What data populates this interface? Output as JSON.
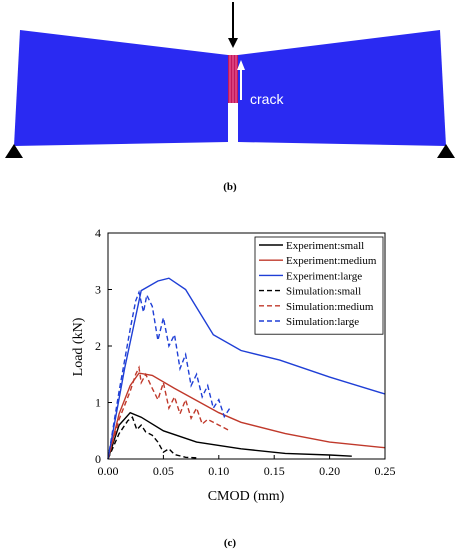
{
  "panel_b": {
    "label": "(b)",
    "crack_label": "crack",
    "beam_color": "#2a2af2",
    "crack_color": "#c2185b"
  },
  "panel_c": {
    "label": "(c)"
  },
  "chart_data": {
    "type": "line",
    "xlabel": "CMOD (mm)",
    "ylabel": "Load (kN)",
    "xlim": [
      0,
      0.25
    ],
    "ylim": [
      0,
      4
    ],
    "xticks": [
      "0.00",
      "0.05",
      "0.10",
      "0.15",
      "0.20",
      "0.25"
    ],
    "yticks": [
      "0",
      "1",
      "2",
      "3",
      "4"
    ],
    "grid": false,
    "legend_position": "top-right",
    "series": [
      {
        "name": "Experiment:small",
        "color": "#000000",
        "dash": "solid",
        "points": [
          [
            0,
            0
          ],
          [
            0.01,
            0.6
          ],
          [
            0.02,
            0.82
          ],
          [
            0.03,
            0.74
          ],
          [
            0.05,
            0.5
          ],
          [
            0.08,
            0.3
          ],
          [
            0.12,
            0.18
          ],
          [
            0.16,
            0.1
          ],
          [
            0.2,
            0.07
          ],
          [
            0.22,
            0.05
          ]
        ]
      },
      {
        "name": "Experiment:medium",
        "color": "#c0392b",
        "dash": "solid",
        "points": [
          [
            0,
            0
          ],
          [
            0.01,
            0.8
          ],
          [
            0.02,
            1.3
          ],
          [
            0.028,
            1.52
          ],
          [
            0.04,
            1.48
          ],
          [
            0.06,
            1.25
          ],
          [
            0.1,
            0.82
          ],
          [
            0.12,
            0.65
          ],
          [
            0.16,
            0.45
          ],
          [
            0.2,
            0.3
          ],
          [
            0.25,
            0.2
          ]
        ]
      },
      {
        "name": "Experiment:large",
        "color": "#1f3fd6",
        "dash": "solid",
        "points": [
          [
            0,
            0
          ],
          [
            0.015,
            1.6
          ],
          [
            0.03,
            2.98
          ],
          [
            0.045,
            3.15
          ],
          [
            0.055,
            3.2
          ],
          [
            0.07,
            3.0
          ],
          [
            0.095,
            2.2
          ],
          [
            0.12,
            1.92
          ],
          [
            0.155,
            1.75
          ],
          [
            0.2,
            1.45
          ],
          [
            0.25,
            1.15
          ]
        ]
      },
      {
        "name": "Simulation:small",
        "color": "#000000",
        "dash": "dashed",
        "points": [
          [
            0,
            0
          ],
          [
            0.01,
            0.45
          ],
          [
            0.018,
            0.68
          ],
          [
            0.022,
            0.74
          ],
          [
            0.026,
            0.52
          ],
          [
            0.03,
            0.6
          ],
          [
            0.034,
            0.48
          ],
          [
            0.04,
            0.42
          ],
          [
            0.045,
            0.3
          ],
          [
            0.05,
            0.12
          ],
          [
            0.055,
            0.18
          ],
          [
            0.06,
            0.08
          ],
          [
            0.07,
            0.03
          ],
          [
            0.08,
            0.02
          ]
        ]
      },
      {
        "name": "Simulation:medium",
        "color": "#c0392b",
        "dash": "dashed",
        "points": [
          [
            0,
            0
          ],
          [
            0.01,
            0.7
          ],
          [
            0.02,
            1.2
          ],
          [
            0.025,
            1.5
          ],
          [
            0.028,
            1.62
          ],
          [
            0.03,
            1.35
          ],
          [
            0.034,
            1.5
          ],
          [
            0.04,
            1.25
          ],
          [
            0.045,
            1.05
          ],
          [
            0.05,
            1.35
          ],
          [
            0.055,
            0.9
          ],
          [
            0.06,
            1.1
          ],
          [
            0.065,
            0.8
          ],
          [
            0.07,
            1.05
          ],
          [
            0.075,
            0.72
          ],
          [
            0.08,
            0.9
          ],
          [
            0.085,
            0.62
          ],
          [
            0.09,
            0.7
          ],
          [
            0.1,
            0.6
          ],
          [
            0.11,
            0.5
          ]
        ]
      },
      {
        "name": "Simulation:large",
        "color": "#1f3fd6",
        "dash": "dashed",
        "points": [
          [
            0,
            0
          ],
          [
            0.01,
            1.2
          ],
          [
            0.02,
            2.3
          ],
          [
            0.025,
            2.8
          ],
          [
            0.028,
            2.95
          ],
          [
            0.032,
            2.6
          ],
          [
            0.035,
            2.9
          ],
          [
            0.04,
            2.7
          ],
          [
            0.045,
            2.1
          ],
          [
            0.05,
            2.5
          ],
          [
            0.055,
            2.0
          ],
          [
            0.06,
            2.2
          ],
          [
            0.065,
            1.6
          ],
          [
            0.07,
            1.85
          ],
          [
            0.075,
            1.3
          ],
          [
            0.08,
            1.5
          ],
          [
            0.085,
            1.1
          ],
          [
            0.09,
            1.3
          ],
          [
            0.095,
            0.9
          ],
          [
            0.1,
            1.05
          ],
          [
            0.105,
            0.75
          ],
          [
            0.11,
            0.9
          ]
        ]
      }
    ]
  }
}
